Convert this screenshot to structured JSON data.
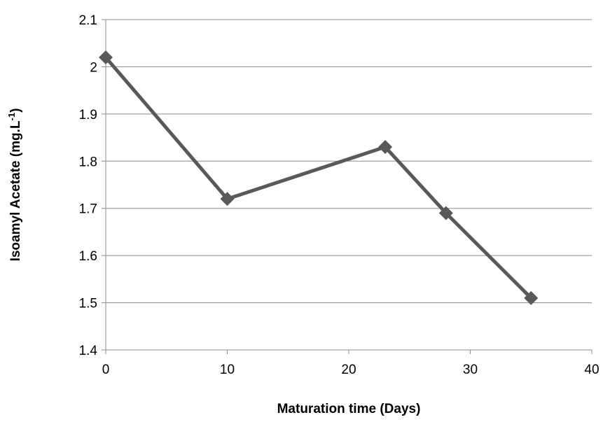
{
  "chart_data": {
    "type": "line",
    "title": "",
    "xlabel": "Maturation time (Days)",
    "ylabel_main": "Isoamyl Acetate (mg.L",
    "ylabel_sup": "-1",
    "ylabel_end": ")",
    "xlim": [
      0,
      40
    ],
    "ylim": [
      1.4,
      2.1
    ],
    "x_ticks": [
      0,
      10,
      20,
      30,
      40
    ],
    "x_tick_labels": [
      "0",
      "10",
      "20",
      "30",
      "40"
    ],
    "y_ticks": [
      1.4,
      1.5,
      1.6,
      1.7,
      1.8,
      1.9,
      2.0,
      2.1
    ],
    "y_tick_labels": [
      "1.4",
      "1.5",
      "1.6",
      "1.7",
      "1.8",
      "1.9",
      "2",
      "2.1"
    ],
    "grid": true,
    "legend": "none",
    "series": [
      {
        "x": [
          0,
          10,
          23,
          28,
          35
        ],
        "y": [
          2.02,
          1.72,
          1.83,
          1.69,
          1.51
        ],
        "color": "#595959",
        "marker": "diamond"
      }
    ]
  }
}
